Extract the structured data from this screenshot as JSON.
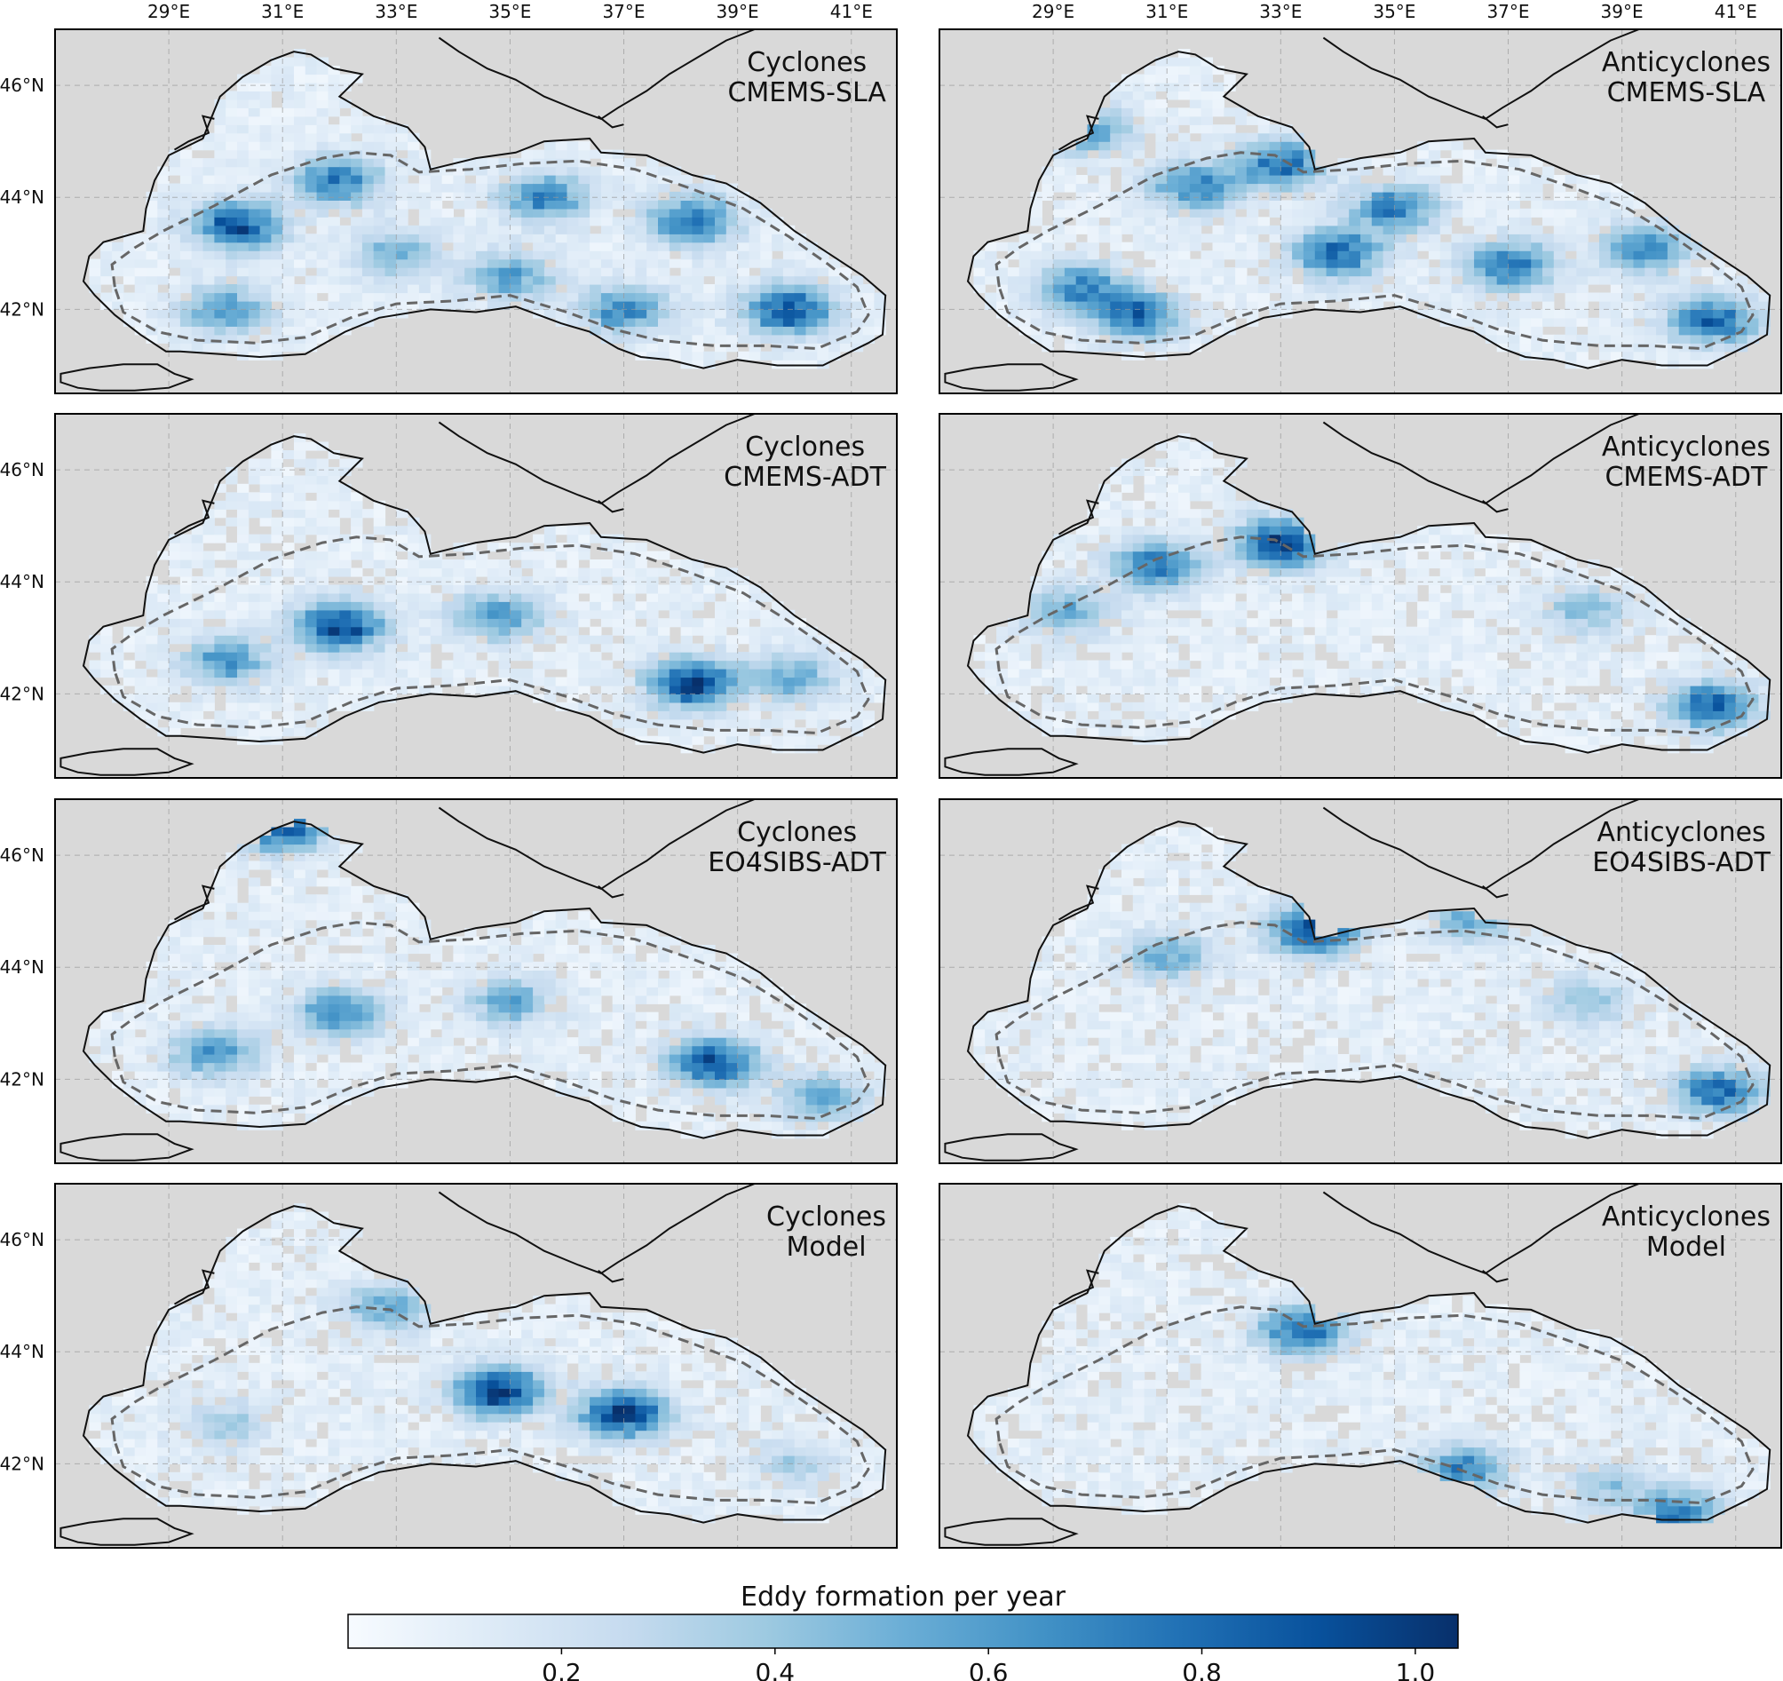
{
  "chart_data": {
    "type": "heatmap",
    "description_units": "Eddy formation per year",
    "x_ticks": [
      "29°E",
      "31°E",
      "33°E",
      "35°E",
      "37°E",
      "39°E",
      "41°E"
    ],
    "x_tick_values": [
      29,
      31,
      33,
      35,
      37,
      39,
      41
    ],
    "y_ticks": [
      "46°N",
      "44°N",
      "42°N"
    ],
    "y_tick_values": [
      46,
      44,
      42
    ],
    "xlim": [
      27.0,
      41.8
    ],
    "ylim": [
      40.5,
      47.0
    ],
    "grid": true,
    "colorbar": {
      "label": "Eddy formation per year",
      "range": [
        0.0,
        1.04
      ],
      "ticks": [
        "0.2",
        "0.4",
        "0.6",
        "0.8",
        "1.0"
      ],
      "tick_values": [
        0.2,
        0.4,
        0.6,
        0.8,
        1.0
      ],
      "colormap": "Blues",
      "position": "bottom"
    },
    "panels": [
      {
        "title_lines": [
          "Cyclones",
          "CMEMS-SLA"
        ],
        "hotspots": [
          {
            "lon": 30.2,
            "lat": 43.5,
            "value": 0.85
          },
          {
            "lon": 32.0,
            "lat": 44.3,
            "value": 0.65
          },
          {
            "lon": 30.0,
            "lat": 42.0,
            "value": 0.55
          },
          {
            "lon": 35.6,
            "lat": 44.0,
            "value": 0.6
          },
          {
            "lon": 38.2,
            "lat": 43.6,
            "value": 0.7
          },
          {
            "lon": 37.0,
            "lat": 42.0,
            "value": 0.6
          },
          {
            "lon": 39.9,
            "lat": 42.0,
            "value": 0.85
          },
          {
            "lon": 35.0,
            "lat": 42.6,
            "value": 0.5
          },
          {
            "lon": 33.0,
            "lat": 43.0,
            "value": 0.4
          }
        ]
      },
      {
        "title_lines": [
          "Anticyclones",
          "CMEMS-SLA"
        ],
        "hotspots": [
          {
            "lon": 33.0,
            "lat": 44.6,
            "value": 0.7
          },
          {
            "lon": 31.5,
            "lat": 44.2,
            "value": 0.6
          },
          {
            "lon": 35.0,
            "lat": 43.8,
            "value": 0.65
          },
          {
            "lon": 34.0,
            "lat": 43.0,
            "value": 0.75
          },
          {
            "lon": 37.0,
            "lat": 42.8,
            "value": 0.7
          },
          {
            "lon": 39.4,
            "lat": 43.1,
            "value": 0.6
          },
          {
            "lon": 40.6,
            "lat": 41.8,
            "value": 0.75
          },
          {
            "lon": 30.5,
            "lat": 41.9,
            "value": 0.7
          },
          {
            "lon": 29.5,
            "lat": 42.4,
            "value": 0.6
          },
          {
            "lon": 29.6,
            "lat": 45.2,
            "value": 0.5
          }
        ]
      },
      {
        "title_lines": [
          "Cyclones",
          "CMEMS-ADT"
        ],
        "hotspots": [
          {
            "lon": 32.0,
            "lat": 43.2,
            "value": 0.9
          },
          {
            "lon": 30.0,
            "lat": 42.6,
            "value": 0.55
          },
          {
            "lon": 34.8,
            "lat": 43.4,
            "value": 0.55
          },
          {
            "lon": 38.2,
            "lat": 42.2,
            "value": 0.9
          },
          {
            "lon": 40.0,
            "lat": 42.3,
            "value": 0.45
          }
        ]
      },
      {
        "title_lines": [
          "Anticyclones",
          "CMEMS-ADT"
        ],
        "hotspots": [
          {
            "lon": 33.0,
            "lat": 44.7,
            "value": 0.9
          },
          {
            "lon": 30.8,
            "lat": 44.3,
            "value": 0.7
          },
          {
            "lon": 29.2,
            "lat": 43.5,
            "value": 0.45
          },
          {
            "lon": 40.6,
            "lat": 41.8,
            "value": 0.75
          },
          {
            "lon": 38.4,
            "lat": 43.5,
            "value": 0.35
          }
        ]
      },
      {
        "title_lines": [
          "Cyclones",
          "EO4SIBS-ADT"
        ],
        "hotspots": [
          {
            "lon": 32.0,
            "lat": 43.2,
            "value": 0.6
          },
          {
            "lon": 29.8,
            "lat": 42.5,
            "value": 0.55
          },
          {
            "lon": 35.0,
            "lat": 43.4,
            "value": 0.45
          },
          {
            "lon": 38.6,
            "lat": 42.3,
            "value": 0.85
          },
          {
            "lon": 31.0,
            "lat": 46.5,
            "value": 0.8
          },
          {
            "lon": 40.5,
            "lat": 41.7,
            "value": 0.45
          }
        ]
      },
      {
        "title_lines": [
          "Anticyclones",
          "EO4SIBS-ADT"
        ],
        "hotspots": [
          {
            "lon": 33.6,
            "lat": 44.7,
            "value": 0.95
          },
          {
            "lon": 31.0,
            "lat": 44.2,
            "value": 0.45
          },
          {
            "lon": 40.7,
            "lat": 41.8,
            "value": 0.75
          },
          {
            "lon": 36.4,
            "lat": 44.9,
            "value": 0.45
          },
          {
            "lon": 38.4,
            "lat": 43.4,
            "value": 0.3
          }
        ]
      },
      {
        "title_lines": [
          "Cyclones",
          "Model"
        ],
        "hotspots": [
          {
            "lon": 34.8,
            "lat": 43.3,
            "value": 0.95
          },
          {
            "lon": 37.0,
            "lat": 42.9,
            "value": 0.9
          },
          {
            "lon": 32.8,
            "lat": 44.8,
            "value": 0.45
          },
          {
            "lon": 30.0,
            "lat": 42.7,
            "value": 0.3
          },
          {
            "lon": 40.0,
            "lat": 42.0,
            "value": 0.25
          }
        ]
      },
      {
        "title_lines": [
          "Anticyclones",
          "Model"
        ],
        "hotspots": [
          {
            "lon": 33.4,
            "lat": 44.4,
            "value": 0.75
          },
          {
            "lon": 36.2,
            "lat": 41.9,
            "value": 0.6
          },
          {
            "lon": 40.0,
            "lat": 41.1,
            "value": 0.65
          },
          {
            "lon": 38.8,
            "lat": 41.6,
            "value": 0.3
          }
        ]
      }
    ]
  }
}
